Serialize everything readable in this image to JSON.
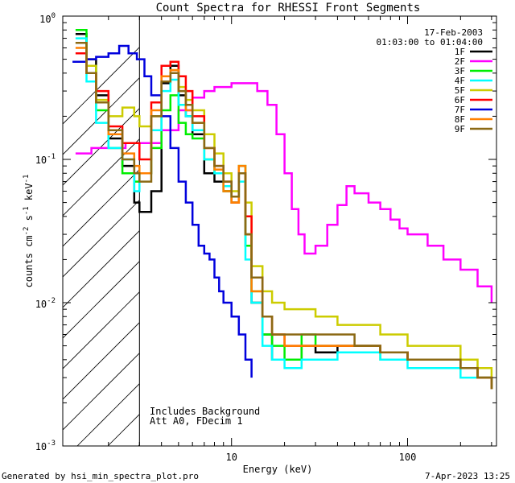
{
  "chart_data": {
    "type": "line",
    "title": "Count Spectra for RHESSI Front Segments",
    "xlabel": "Energy (keV)",
    "ylabel": {
      "base": "counts cm",
      "exp1": "-2",
      "mid1": " s",
      "exp2": "-1",
      "mid2": " keV",
      "exp3": "-1"
    },
    "xscale": "log",
    "yscale": "log",
    "xlim": [
      1.1,
      320
    ],
    "ylim": [
      0.001,
      1.0
    ],
    "xticks": [
      {
        "value": 10,
        "label": "10"
      },
      {
        "value": 100,
        "label": "100"
      }
    ],
    "yticks": [
      {
        "value": 1.0,
        "base": "10",
        "exp": "0"
      },
      {
        "value": 0.1,
        "base": "10",
        "exp": "-1"
      },
      {
        "value": 0.01,
        "base": "10",
        "exp": "-2"
      },
      {
        "value": 0.001,
        "base": "10",
        "exp": "-3"
      }
    ],
    "date": "17-Feb-2003",
    "time_range": "01:03:00 to 01:04:00",
    "shaded_region_max_energy": 3,
    "notes": [
      "Includes Background",
      "Att A0, FDecim 1"
    ],
    "footer_left": "Generated by hsi_min_spectra_plot.pro",
    "footer_right": "7-Apr-2023 13:25",
    "series": [
      {
        "name": "1F",
        "color": "#000000",
        "energy": [
          1.3,
          1.5,
          1.7,
          2.0,
          2.4,
          2.8,
          3.0,
          3.5,
          4.0,
          4.5,
          5.0,
          5.5,
          6.0,
          7.0,
          8.0,
          9.0,
          10.0,
          11.0,
          12.0,
          13.0,
          15.0,
          17.0,
          20.0,
          25.0,
          30.0,
          40.0,
          50.0,
          70.0,
          100.0,
          150.0,
          200.0,
          250.0,
          300.0
        ],
        "values": [
          0.75,
          0.5,
          0.28,
          0.14,
          0.09,
          0.05,
          0.043,
          0.06,
          0.34,
          0.45,
          0.28,
          0.2,
          0.15,
          0.08,
          0.07,
          0.06,
          0.05,
          0.08,
          0.03,
          0.01,
          0.006,
          0.004,
          0.004,
          0.005,
          0.0045,
          0.005,
          0.005,
          0.0045,
          0.004,
          0.004,
          0.0035,
          0.003,
          0.0025
        ]
      },
      {
        "name": "2F",
        "color": "#ff00ff",
        "energy": [
          1.3,
          1.6,
          2.0,
          2.5,
          3.0,
          4.0,
          5.0,
          6.0,
          7.0,
          8.0,
          10.0,
          12.0,
          14.0,
          16.0,
          18.0,
          20.0,
          22.0,
          24.0,
          26.0,
          30.0,
          35.0,
          40.0,
          45.0,
          50.0,
          60.0,
          70.0,
          80.0,
          90.0,
          100.0,
          130.0,
          160.0,
          200.0,
          250.0,
          300.0
        ],
        "values": [
          0.11,
          0.12,
          0.12,
          0.13,
          0.13,
          0.16,
          0.22,
          0.27,
          0.3,
          0.32,
          0.34,
          0.34,
          0.3,
          0.24,
          0.15,
          0.08,
          0.045,
          0.03,
          0.022,
          0.025,
          0.035,
          0.048,
          0.065,
          0.058,
          0.05,
          0.045,
          0.038,
          0.033,
          0.03,
          0.025,
          0.02,
          0.017,
          0.013,
          0.01
        ]
      },
      {
        "name": "3F",
        "color": "#00ee00",
        "energy": [
          1.3,
          1.5,
          1.7,
          2.0,
          2.4,
          2.8,
          3.0,
          3.5,
          4.0,
          4.5,
          5.0,
          5.5,
          6.0,
          7.0,
          8.0,
          9.0,
          10.0,
          11.0,
          12.0,
          13.0,
          15.0,
          17.0,
          20.0,
          25.0,
          30.0,
          40.0,
          50.0,
          70.0,
          100.0,
          150.0,
          200.0,
          250.0,
          300.0
        ],
        "values": [
          0.8,
          0.45,
          0.22,
          0.12,
          0.08,
          0.07,
          0.08,
          0.12,
          0.22,
          0.28,
          0.18,
          0.15,
          0.14,
          0.1,
          0.08,
          0.06,
          0.05,
          0.09,
          0.025,
          0.012,
          0.006,
          0.005,
          0.004,
          0.006,
          0.005,
          0.005,
          0.005,
          0.004,
          0.004,
          0.004,
          0.0035,
          0.003,
          0.0025
        ]
      },
      {
        "name": "4F",
        "color": "#00ffff",
        "energy": [
          1.3,
          1.5,
          1.7,
          2.0,
          2.4,
          2.8,
          3.0,
          3.5,
          4.0,
          4.5,
          5.0,
          5.5,
          6.0,
          7.0,
          8.0,
          9.0,
          10.0,
          11.0,
          12.0,
          13.0,
          15.0,
          17.0,
          20.0,
          25.0,
          30.0,
          40.0,
          50.0,
          70.0,
          100.0,
          150.0,
          200.0,
          250.0,
          300.0
        ],
        "values": [
          0.7,
          0.35,
          0.18,
          0.12,
          0.1,
          0.06,
          0.08,
          0.16,
          0.3,
          0.36,
          0.24,
          0.2,
          0.16,
          0.1,
          0.08,
          0.065,
          0.055,
          0.07,
          0.02,
          0.01,
          0.005,
          0.004,
          0.0035,
          0.004,
          0.004,
          0.0045,
          0.0045,
          0.004,
          0.0035,
          0.0035,
          0.003,
          0.003,
          0.0025
        ]
      },
      {
        "name": "5F",
        "color": "#cccc00",
        "energy": [
          1.3,
          1.5,
          1.7,
          2.0,
          2.4,
          2.8,
          3.0,
          3.5,
          4.0,
          4.5,
          5.0,
          5.5,
          6.0,
          7.0,
          8.0,
          9.0,
          10.0,
          11.0,
          12.0,
          13.0,
          15.0,
          17.0,
          20.0,
          25.0,
          30.0,
          40.0,
          50.0,
          70.0,
          100.0,
          150.0,
          200.0,
          250.0,
          300.0
        ],
        "values": [
          0.65,
          0.45,
          0.26,
          0.2,
          0.23,
          0.2,
          0.17,
          0.2,
          0.35,
          0.42,
          0.32,
          0.26,
          0.22,
          0.15,
          0.11,
          0.08,
          0.06,
          0.08,
          0.05,
          0.018,
          0.012,
          0.01,
          0.009,
          0.009,
          0.008,
          0.007,
          0.007,
          0.006,
          0.005,
          0.005,
          0.004,
          0.0035,
          0.003
        ]
      },
      {
        "name": "6F",
        "color": "#ff0000",
        "energy": [
          1.3,
          1.5,
          1.7,
          2.0,
          2.4,
          2.8,
          3.0,
          3.5,
          4.0,
          4.5,
          5.0,
          5.5,
          6.0,
          7.0,
          8.0,
          9.0,
          10.0,
          11.0,
          12.0,
          13.0,
          15.0,
          17.0,
          20.0,
          25.0,
          30.0,
          40.0,
          50.0,
          70.0,
          100.0,
          150.0,
          200.0,
          250.0,
          300.0
        ],
        "values": [
          0.55,
          0.4,
          0.3,
          0.17,
          0.13,
          0.13,
          0.1,
          0.25,
          0.45,
          0.48,
          0.38,
          0.3,
          0.2,
          0.12,
          0.09,
          0.07,
          0.05,
          0.08,
          0.04,
          0.015,
          0.008,
          0.006,
          0.005,
          0.005,
          0.005,
          0.005,
          0.005,
          0.0045,
          0.004,
          0.004,
          0.0035,
          0.003,
          0.0025
        ]
      },
      {
        "name": "7F",
        "color": "#0000dd",
        "energy": [
          1.25,
          1.5,
          1.7,
          2.0,
          2.3,
          2.6,
          2.9,
          3.2,
          3.5,
          4.0,
          4.5,
          5.0,
          5.5,
          6.0,
          6.5,
          7.0,
          7.5,
          8.0,
          8.5,
          9.0,
          10.0,
          11.0,
          12.0,
          13.0
        ],
        "values": [
          0.48,
          0.5,
          0.52,
          0.55,
          0.62,
          0.55,
          0.5,
          0.38,
          0.28,
          0.2,
          0.12,
          0.07,
          0.05,
          0.035,
          0.025,
          0.022,
          0.02,
          0.015,
          0.012,
          0.01,
          0.008,
          0.006,
          0.004,
          0.003
        ]
      },
      {
        "name": "8F",
        "color": "#ff8000",
        "energy": [
          1.3,
          1.5,
          1.7,
          2.0,
          2.4,
          2.8,
          3.0,
          3.5,
          4.0,
          4.5,
          5.0,
          5.5,
          6.0,
          7.0,
          8.0,
          9.0,
          10.0,
          11.0,
          12.0,
          13.0,
          15.0,
          17.0,
          20.0,
          25.0,
          30.0,
          40.0,
          50.0,
          70.0,
          100.0,
          150.0,
          200.0,
          250.0,
          300.0
        ],
        "values": [
          0.6,
          0.4,
          0.25,
          0.15,
          0.11,
          0.09,
          0.08,
          0.22,
          0.38,
          0.42,
          0.3,
          0.22,
          0.18,
          0.12,
          0.085,
          0.06,
          0.05,
          0.09,
          0.03,
          0.012,
          0.008,
          0.006,
          0.005,
          0.005,
          0.005,
          0.005,
          0.005,
          0.0045,
          0.004,
          0.004,
          0.0035,
          0.003,
          0.0025
        ]
      },
      {
        "name": "9F",
        "color": "#8b6914",
        "energy": [
          1.3,
          1.5,
          1.7,
          2.0,
          2.4,
          2.8,
          3.0,
          3.5,
          4.0,
          4.5,
          5.0,
          5.5,
          6.0,
          7.0,
          8.0,
          9.0,
          10.0,
          11.0,
          12.0,
          13.0,
          15.0,
          17.0,
          20.0,
          25.0,
          30.0,
          40.0,
          50.0,
          70.0,
          100.0,
          150.0,
          200.0,
          250.0,
          300.0
        ],
        "values": [
          0.65,
          0.4,
          0.25,
          0.16,
          0.1,
          0.08,
          0.07,
          0.2,
          0.35,
          0.4,
          0.3,
          0.24,
          0.18,
          0.12,
          0.09,
          0.07,
          0.055,
          0.08,
          0.03,
          0.015,
          0.008,
          0.006,
          0.006,
          0.006,
          0.006,
          0.006,
          0.005,
          0.0045,
          0.004,
          0.004,
          0.0035,
          0.003,
          0.0025
        ]
      }
    ]
  }
}
